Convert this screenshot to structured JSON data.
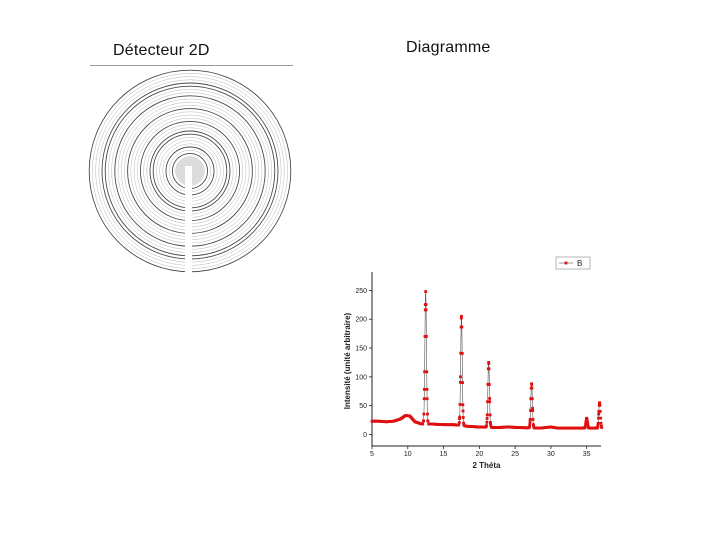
{
  "labels": {
    "detector_title": "Détecteur 2D",
    "diagram_title": "Diagramme"
  },
  "colors": {
    "series": "#e01010",
    "axis": "#222222",
    "ring": "#7a7a7a"
  },
  "chart_data": {
    "type": "line",
    "title": "",
    "xlabel": "2 Théta",
    "ylabel": "Intensité (unité arbitraire)",
    "xlim": [
      5,
      37
    ],
    "ylim": [
      -20,
      275
    ],
    "xticks": [
      5,
      10,
      15,
      20,
      25,
      30,
      35
    ],
    "xtick_labels": [
      "5",
      "10",
      "15",
      "20",
      "25",
      "30",
      "35"
    ],
    "yticks": [
      0,
      50,
      100,
      150,
      200,
      250
    ],
    "ytick_labels": [
      "0",
      "50",
      "100",
      "150",
      "200",
      "250"
    ],
    "legend_position": "top-right",
    "grid": false,
    "series": [
      {
        "name": "B",
        "marker": "square",
        "peaks": [
          {
            "x": 12.5,
            "y": 248
          },
          {
            "x": 17.5,
            "y": 205
          },
          {
            "x": 21.3,
            "y": 125
          },
          {
            "x": 27.3,
            "y": 88
          },
          {
            "x": 35.0,
            "y": 28
          },
          {
            "x": 36.8,
            "y": 55
          }
        ],
        "baseline": [
          {
            "x": 5.0,
            "y": 23
          },
          {
            "x": 6.0,
            "y": 23
          },
          {
            "x": 7.0,
            "y": 22
          },
          {
            "x": 8.0,
            "y": 23
          },
          {
            "x": 9.0,
            "y": 27
          },
          {
            "x": 9.7,
            "y": 33
          },
          {
            "x": 10.3,
            "y": 32
          },
          {
            "x": 11.0,
            "y": 22
          },
          {
            "x": 12.0,
            "y": 18
          },
          {
            "x": 13.5,
            "y": 18
          },
          {
            "x": 15.0,
            "y": 17
          },
          {
            "x": 16.5,
            "y": 17
          },
          {
            "x": 18.5,
            "y": 14
          },
          {
            "x": 20.0,
            "y": 13
          },
          {
            "x": 22.5,
            "y": 12
          },
          {
            "x": 24.0,
            "y": 13
          },
          {
            "x": 25.5,
            "y": 12
          },
          {
            "x": 28.5,
            "y": 11
          },
          {
            "x": 30.0,
            "y": 13
          },
          {
            "x": 31.0,
            "y": 11
          },
          {
            "x": 33.0,
            "y": 11
          },
          {
            "x": 34.5,
            "y": 11
          },
          {
            "x": 35.5,
            "y": 11
          },
          {
            "x": 36.3,
            "y": 11
          }
        ]
      }
    ]
  }
}
